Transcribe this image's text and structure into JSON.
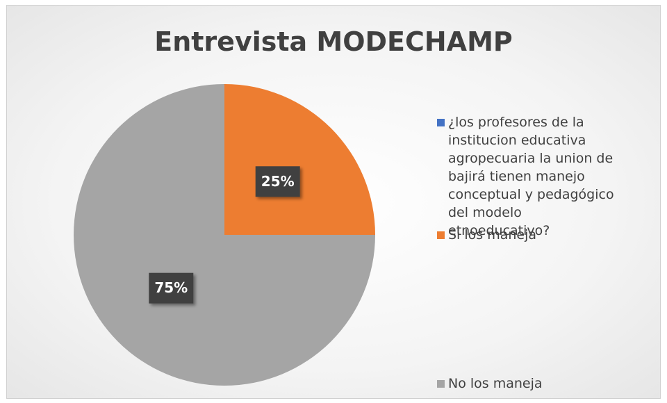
{
  "chart_data": {
    "type": "pie",
    "title": "Entrevista MODECHAMP",
    "categories": [
      "¿los profesores de la institucion educativa agropecuaria la union de bajirá tienen  manejo conceptual y pedagógico del modelo etnoeducativo?",
      "Si los maneja",
      "No los maneja"
    ],
    "values": [
      0,
      25,
      75
    ],
    "value_labels": [
      null,
      "25%",
      "75%"
    ],
    "colors": [
      "#4472c4",
      "#ed7d31",
      "#a5a5a5"
    ],
    "legend": "right"
  }
}
